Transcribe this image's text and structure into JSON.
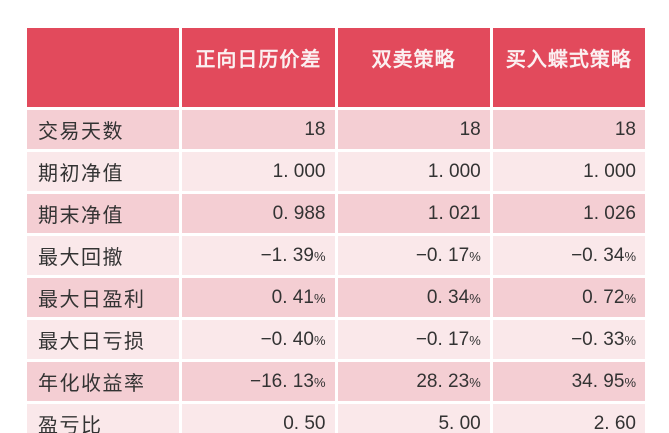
{
  "colors": {
    "page_background": "#FFFFFF",
    "header_background": "#E24A5C",
    "header_text": "#FBF0F1",
    "row_dark_pink": "#F4CED3",
    "row_light_pink": "#FAE8EA",
    "cell_text": "#333333"
  },
  "chart_data": {
    "type": "table",
    "columns": [
      "",
      "正向日历价差",
      "双卖策略",
      "买入蝶式策略"
    ],
    "rows": [
      {
        "label": "交易天数",
        "values": [
          "18",
          "18",
          "18"
        ]
      },
      {
        "label": "期初净值",
        "values": [
          "1.000",
          "1.000",
          "1.000"
        ]
      },
      {
        "label": "期末净值",
        "values": [
          "0.988",
          "1.021",
          "1.026"
        ]
      },
      {
        "label": "最大回撤",
        "values": [
          "-1.39%",
          "-0.17%",
          "-0.34%"
        ]
      },
      {
        "label": "最大日盈利",
        "values": [
          "0.41%",
          "0.34%",
          "0.72%"
        ]
      },
      {
        "label": "最大日亏损",
        "values": [
          "-0.40%",
          "-0.17%",
          "-0.33%"
        ]
      },
      {
        "label": "年化收益率",
        "values": [
          "-16.13%",
          "28.23%",
          "34.95%"
        ]
      },
      {
        "label": "盈亏比",
        "values": [
          "0.50",
          "5.00",
          "2.60"
        ]
      }
    ]
  }
}
